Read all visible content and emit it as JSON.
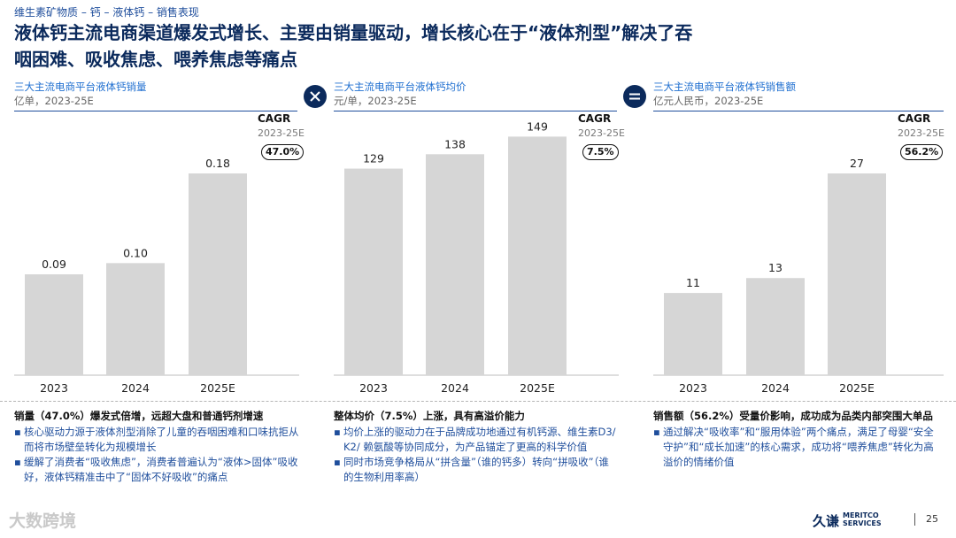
{
  "breadcrumb": "维生素矿物质 – 钙 – 液体钙 – 销售表现",
  "title_line1": "液体钙主流电商渠道爆发式增长、主要由销量驱动，增长核心在于“液体剂型”解决了吞",
  "title_line2": "咽困难、吸收焦虑、喂养焦虑等痛点",
  "colors": {
    "navy": "#0b2a5c",
    "blue": "#1f4e9c",
    "bar": "#d6d6d6"
  },
  "icons": {
    "multiply": "multiply-icon",
    "equals": "equals-icon"
  },
  "cagr_label": "CAGR",
  "cagr_period": "2023-25E",
  "chart_data": [
    {
      "type": "bar",
      "title": "三大主流电商平台液体钙销量",
      "unit": "亿单，2023-25E",
      "categories": [
        "2023",
        "2024",
        "2025E"
      ],
      "values": [
        0.09,
        0.1,
        0.18
      ],
      "value_labels": [
        "0.09",
        "0.10",
        "0.18"
      ],
      "ylim": [
        0,
        0.24
      ],
      "cagr": "47.0%"
    },
    {
      "type": "bar",
      "title": "三大主流电商平台液体钙均价",
      "unit": "元/单，2023-25E",
      "categories": [
        "2023",
        "2024",
        "2025E"
      ],
      "values": [
        129,
        138,
        149
      ],
      "value_labels": [
        "129",
        "138",
        "149"
      ],
      "ylim": [
        0,
        168
      ],
      "cagr": "7.5%"
    },
    {
      "type": "bar",
      "title": "三大主流电商平台液体钙销售额",
      "unit": "亿元人民币，2023-25E",
      "categories": [
        "2023",
        "2024",
        "2025E"
      ],
      "values": [
        11,
        13,
        27
      ],
      "value_labels": [
        "11",
        "13",
        "27"
      ],
      "ylim": [
        0,
        36
      ],
      "cagr": "56.2%"
    }
  ],
  "notes": [
    {
      "head": "销量（47.0%）爆发式倍增，远超大盘和普通钙剂增速",
      "bullets": [
        "核心驱动力源于液体剂型消除了儿童的吞咽困难和口味抗拒从而将市场壁垒转化为规模增长",
        "缓解了消费者“吸收焦虑”，消费者普遍认为“液体>固体”吸收好，液体钙精准击中了“固体不好吸收”的痛点"
      ]
    },
    {
      "head": "整体均价（7.5%）上涨，具有高溢价能力",
      "bullets": [
        "均价上涨的驱动力在于品牌成功地通过有机钙源、维生素D3/ K2/ 赖氨酸等协同成分，为产品锚定了更高的科学价值",
        "同时市场竞争格局从“拼含量”（谁的钙多）转向“拼吸收”（谁的生物利用率高）"
      ]
    },
    {
      "head": "销售额（56.2%）受量价影响，成功成为品类内部突围大单品",
      "bullets": [
        "通过解决“吸收率”和“服用体验”两个痛点，满足了母婴“安全守护”和“成长加速”的核心需求，成功将“喂养焦虑”转化为高溢价的情绪价值"
      ]
    }
  ],
  "footer": {
    "watermark": "大数跨境",
    "brand_cn": "久谦",
    "brand_en_1": "MERITCO",
    "brand_en_2": "SERVICES",
    "page": "25"
  }
}
